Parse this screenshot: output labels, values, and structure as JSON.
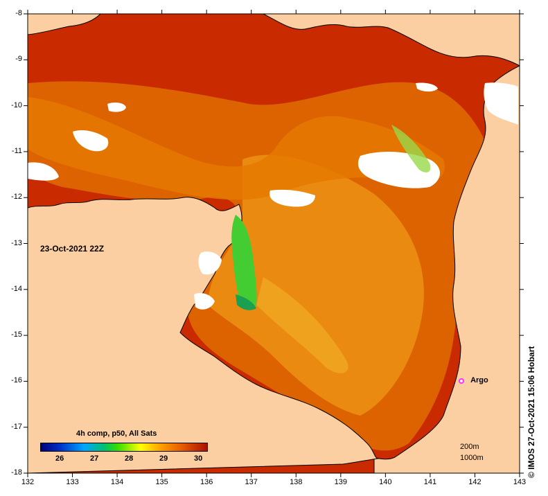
{
  "map": {
    "timestamp": "23-Oct-2021 22Z",
    "lon_ticks": [
      "132",
      "133",
      "134",
      "135",
      "136",
      "137",
      "138",
      "139",
      "140",
      "141",
      "142",
      "143"
    ],
    "lat_ticks": [
      "-8",
      "-9",
      "-10",
      "-11",
      "-12",
      "-13",
      "-14",
      "-15",
      "-16",
      "-17",
      "-18"
    ],
    "lon_range": [
      132,
      143
    ],
    "lat_range": [
      -18,
      -8
    ],
    "argo_label": "Argo",
    "argo_position": {
      "lon": 141.7,
      "lat": -16.0
    },
    "contours": [
      "200m",
      "1000m"
    ],
    "credit": "© IMOS 27-Oct-2021 15:06 Hobart"
  },
  "colorbar": {
    "title": "4h comp, p50, All Sats",
    "ticks": [
      "26",
      "27",
      "28",
      "29",
      "30"
    ],
    "tick_values": [
      26,
      27,
      28,
      29,
      30
    ],
    "range": [
      25.4,
      30.2
    ]
  },
  "colors": {
    "land": "#fbcfa1",
    "sea_warm": "#b31b00",
    "sea_mid": "#e07000",
    "sea_cool": "#f4b000",
    "cool_patch": "#33cc33",
    "cloud": "#ffffff"
  }
}
